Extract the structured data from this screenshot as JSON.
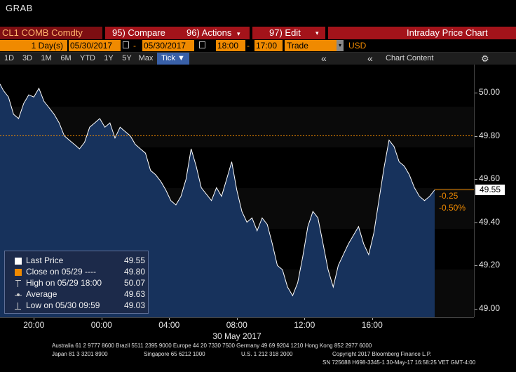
{
  "window": {
    "title": "GRAB"
  },
  "menubar": {
    "ticker": "CL1 COMB Comdty",
    "compare": "95) Compare",
    "actions": "96) Actions",
    "edit": "97) Edit",
    "chart_name": "Intraday Price Chart"
  },
  "datebar": {
    "days_count": "1",
    "days_unit": "Day(s)",
    "start_date": "05/30/2017",
    "dash": "-",
    "end_date": "05/30/2017",
    "start_time": "18:00",
    "time_dash": "-",
    "end_time": "17:00",
    "field": "Trade",
    "currency": "USD"
  },
  "periodbar": {
    "periods": [
      "1D",
      "3D",
      "1M",
      "6M",
      "YTD",
      "1Y",
      "5Y",
      "Max"
    ],
    "tick_label": "Tick ▼",
    "collapse": "«",
    "expand": "«",
    "chart_content": "Chart Content",
    "settings_icon": "gear-icon"
  },
  "chart_data": {
    "type": "line",
    "ylim": [
      48.96,
      50.13
    ],
    "y_ticks": [
      "50.00",
      "49.80",
      "49.60",
      "49.40",
      "49.20",
      "49.00"
    ],
    "x_ticks": [
      "20:00",
      "00:00",
      "04:00",
      "08:00",
      "12:00",
      "16:00"
    ],
    "date_label": "30 May 2017",
    "x": [
      18.0,
      18.2,
      18.5,
      18.8,
      19.1,
      19.4,
      19.7,
      20.0,
      20.3,
      20.6,
      20.9,
      21.2,
      21.5,
      21.8,
      22.1,
      22.4,
      22.7,
      23.0,
      23.3,
      23.6,
      23.9,
      24.2,
      24.5,
      24.8,
      25.1,
      25.4,
      25.7,
      26.0,
      26.3,
      26.6,
      26.9,
      27.2,
      27.5,
      27.8,
      28.1,
      28.4,
      28.7,
      29.0,
      29.3,
      29.6,
      29.9,
      30.2,
      30.5,
      30.8,
      31.1,
      31.4,
      31.7,
      32.0,
      32.3,
      32.6,
      32.9,
      33.2,
      33.5,
      33.8,
      34.1,
      34.4,
      34.7,
      35.0,
      35.3,
      35.6,
      35.9,
      36.2,
      36.5,
      36.8,
      37.1,
      37.4,
      37.7,
      38.0,
      38.3,
      38.6,
      38.9,
      39.2,
      39.5,
      39.8,
      40.1,
      40.4,
      40.7,
      41.0,
      41.3,
      41.6,
      41.9,
      42.2,
      42.5,
      42.8,
      43.1,
      43.4,
      43.7
    ],
    "series": [
      {
        "values": [
          50.04,
          50.01,
          49.98,
          49.9,
          49.88,
          49.95,
          49.99,
          49.98,
          50.02,
          49.96,
          49.93,
          49.9,
          49.86,
          49.8,
          49.78,
          49.76,
          49.74,
          49.77,
          49.84,
          49.86,
          49.88,
          49.84,
          49.86,
          49.79,
          49.84,
          49.82,
          49.8,
          49.76,
          49.74,
          49.72,
          49.64,
          49.62,
          49.59,
          49.55,
          49.5,
          49.48,
          49.52,
          49.6,
          49.74,
          49.66,
          49.56,
          49.53,
          49.5,
          49.56,
          49.52,
          49.6,
          49.68,
          49.55,
          49.45,
          49.4,
          49.42,
          49.36,
          49.42,
          49.39,
          49.3,
          49.2,
          49.18,
          49.1,
          49.06,
          49.12,
          49.24,
          49.38,
          49.45,
          49.42,
          49.3,
          49.18,
          49.1,
          49.2,
          49.25,
          49.3,
          49.34,
          49.38,
          49.3,
          49.25,
          49.35,
          49.5,
          49.65,
          49.78,
          49.75,
          49.68,
          49.66,
          49.62,
          49.56,
          49.52,
          49.5,
          49.52,
          49.55
        ]
      }
    ],
    "last_price_marker": {
      "value": 49.55,
      "label": "49.55"
    },
    "reference_line": 49.8,
    "net_change": "-0.25",
    "pct_change": "-0.50%",
    "colors": {
      "fill": "#17325c",
      "line": "#ffffff",
      "reference": "#f08a00",
      "last_box": "#ffffff"
    }
  },
  "legend": [
    {
      "label": "Last Price",
      "value": "49.55",
      "icon": "white-square-icon"
    },
    {
      "label": "Close on 05/29 ----",
      "value": "49.80",
      "icon": "orange-square-icon"
    },
    {
      "label": "High on 05/29 18:00",
      "value": "50.07",
      "icon": "high-marker-icon"
    },
    {
      "label": "Average",
      "value": "49.63",
      "icon": "average-marker-icon"
    },
    {
      "label": "Low on 05/30 09:59",
      "value": "49.03",
      "icon": "low-marker-icon"
    }
  ],
  "footer": {
    "line1": "Australia 61 2 9777 8600 Brazil 5511 2395 9000 Europe 44 20 7330 7500 Germany 49 69 9204 1210 Hong Kong 852 2977 6000",
    "line2a": "Japan 81 3 3201 8900",
    "line2b": "Singapore 65 6212 1000",
    "line2c": "U.S. 1 212 318 2000",
    "line2d": "Copyright 2017 Bloomberg Finance L.P.",
    "line3": "SN 725688 H698-3345-1 30-May-17 16:58:25 VET  GMT-4:00"
  }
}
